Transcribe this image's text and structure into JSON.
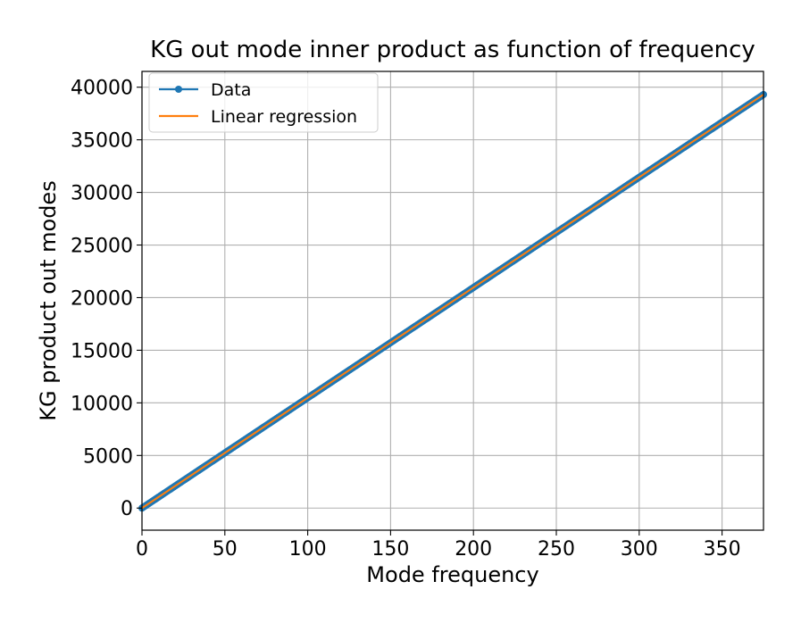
{
  "chart_data": {
    "type": "line",
    "title": "KG out mode inner product as function of frequency",
    "xlabel": "Mode frequency",
    "ylabel": "KG product out modes",
    "xlim": [
      0,
      375
    ],
    "ylim": [
      -2100,
      41500
    ],
    "xticks": [
      0,
      50,
      100,
      150,
      200,
      250,
      300,
      350
    ],
    "yticks": [
      0,
      5000,
      10000,
      15000,
      20000,
      25000,
      30000,
      35000,
      40000
    ],
    "grid": true,
    "legend_position": "top-left",
    "series": [
      {
        "name": "Data",
        "color": "#1f77b4",
        "marker": "circle",
        "x_start": 0,
        "x_end": 375,
        "x_step": 1,
        "y_start": 0,
        "y_end": 39300
      },
      {
        "name": "Linear regression",
        "color": "#ff7f0e",
        "marker": "none",
        "x": [
          0,
          375
        ],
        "y": [
          0,
          39300
        ]
      }
    ]
  }
}
